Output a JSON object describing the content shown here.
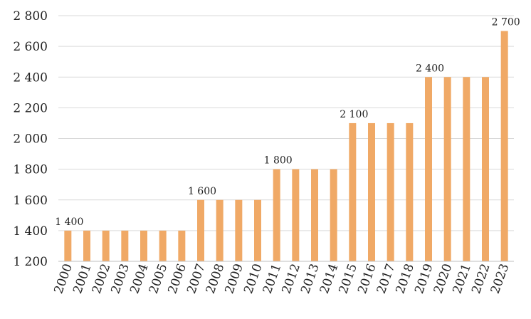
{
  "chart_data": {
    "type": "bar",
    "title": "",
    "xlabel": "",
    "ylabel": "",
    "categories": [
      "2000",
      "2001",
      "2002",
      "2003",
      "2004",
      "2005",
      "2006",
      "2007",
      "2008",
      "2009",
      "2010",
      "2011",
      "2012",
      "2013",
      "2014",
      "2015",
      "2016",
      "2017",
      "2018",
      "2019",
      "2020",
      "2021",
      "2022",
      "2023"
    ],
    "values": [
      1400,
      1400,
      1400,
      1400,
      1400,
      1400,
      1400,
      1600,
      1600,
      1600,
      1600,
      1800,
      1800,
      1800,
      1800,
      2100,
      2100,
      2100,
      2100,
      2400,
      2400,
      2400,
      2400,
      2700
    ],
    "ylim": [
      1200,
      2800
    ],
    "yticks": [
      1200,
      1400,
      1600,
      1800,
      2000,
      2200,
      2400,
      2600,
      2800
    ],
    "ytick_labels": [
      "1 200",
      "1 400",
      "1 600",
      "1 800",
      "2 000",
      "2 200",
      "2 400",
      "2 600",
      "2 800"
    ],
    "data_labels": [
      {
        "category": "2000",
        "text": "1 400"
      },
      {
        "category": "2007",
        "text": "1 600"
      },
      {
        "category": "2011",
        "text": "1 800"
      },
      {
        "category": "2015",
        "text": "2 100"
      },
      {
        "category": "2019",
        "text": "2 400"
      },
      {
        "category": "2023",
        "text": "2 700"
      }
    ],
    "grid": true,
    "legend": "none",
    "bar_color": "#F0A966"
  }
}
